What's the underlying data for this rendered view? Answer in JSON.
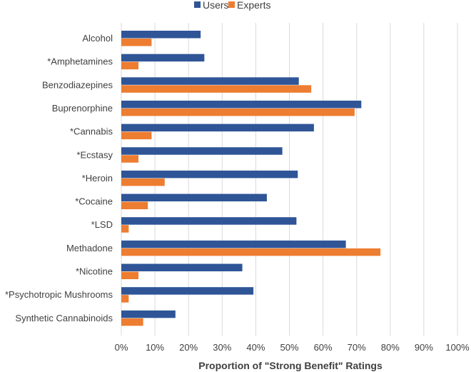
{
  "chart_data": {
    "type": "bar",
    "orientation": "horizontal",
    "title": "",
    "xlabel": "Proportion of \"Strong Benefit\" Ratings",
    "ylabel": "",
    "xlim": [
      0,
      100
    ],
    "x_ticks": [
      "0%",
      "10%",
      "20%",
      "30%",
      "40%",
      "50%",
      "60%",
      "70%",
      "80%",
      "90%",
      "100%"
    ],
    "grid": true,
    "legend_position": "top",
    "categories": [
      "Alcohol",
      "*Amphetamines",
      "Benzodiazepines",
      "Buprenorphine",
      "*Cannabis",
      "*Ecstasy",
      "*Heroin",
      "*Cocaine",
      "*LSD",
      "Methadone",
      "*Nicotine",
      "*Psychotropic Mushrooms",
      "Synthetic Cannabinoids"
    ],
    "series": [
      {
        "name": "Users",
        "color": "#2f5597",
        "values": [
          23.6,
          24.7,
          52.8,
          71.4,
          57.3,
          47.9,
          52.5,
          43.3,
          52.1,
          66.8,
          36.0,
          39.3,
          16.1
        ]
      },
      {
        "name": "Experts",
        "color": "#ed7d31",
        "values": [
          9.0,
          5.1,
          56.5,
          69.4,
          9.0,
          5.1,
          12.9,
          7.9,
          2.2,
          77.1,
          5.1,
          2.2,
          6.5
        ]
      }
    ]
  }
}
